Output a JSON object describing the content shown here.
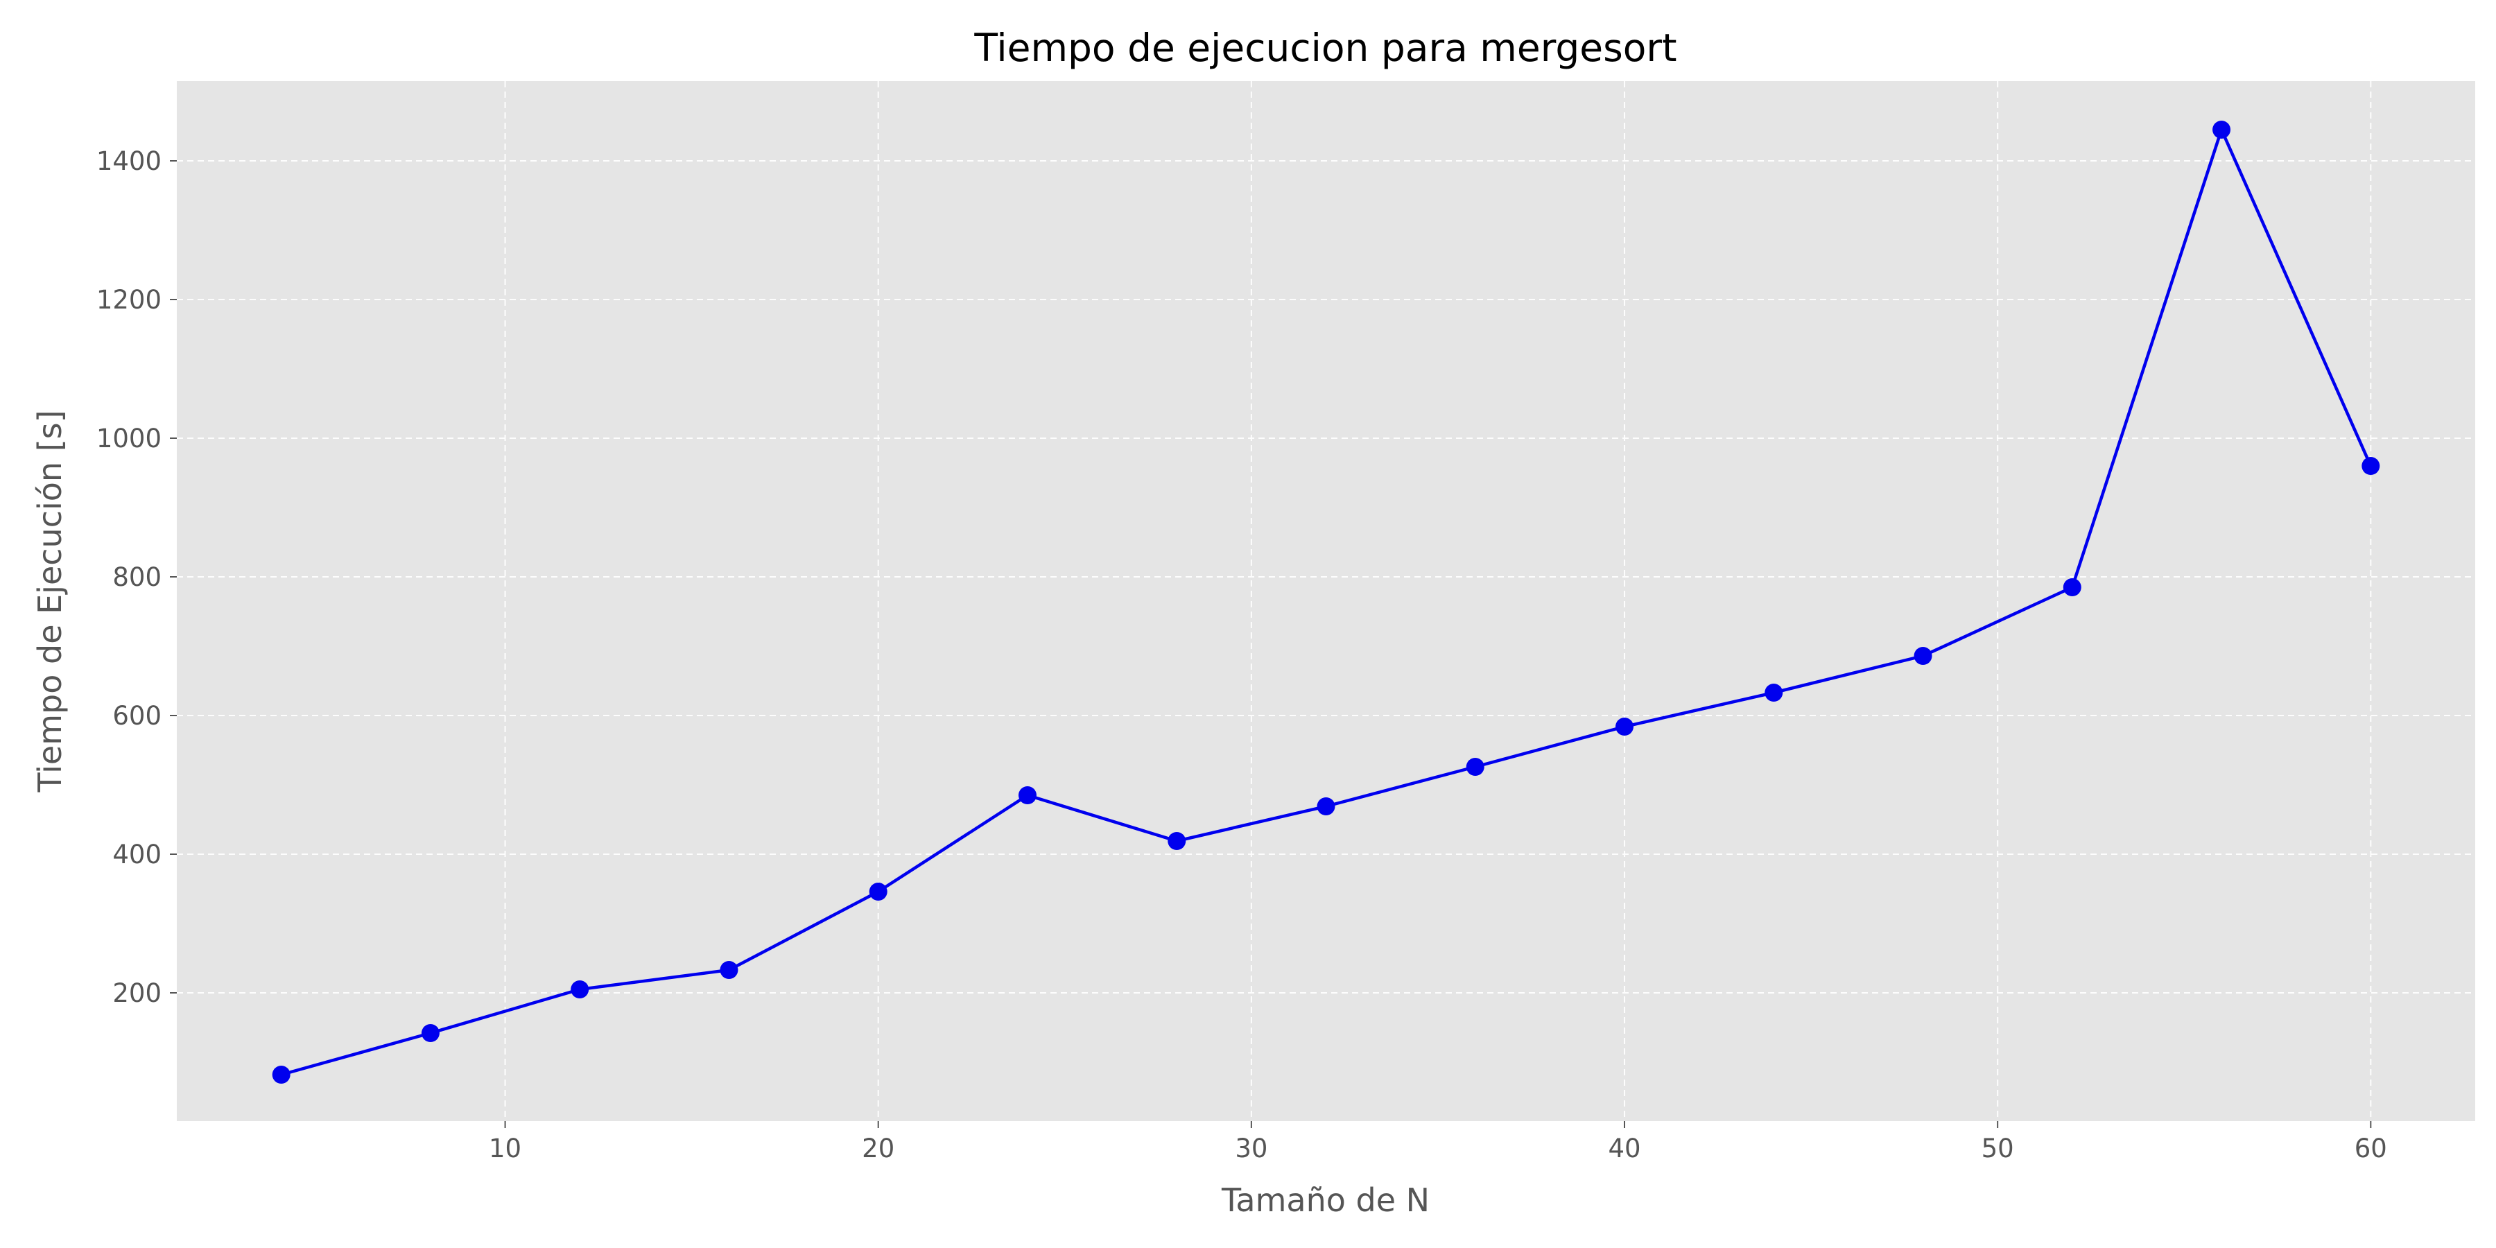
{
  "chart_data": {
    "type": "line",
    "title": "Tiempo de ejecucion para mergesort",
    "xlabel": "Tamaño de N",
    "ylabel": "Tiempo de Ejecución [s]",
    "xlim": [
      1.2,
      62.8
    ],
    "ylim": [
      15,
      1515
    ],
    "x_ticks": [
      10,
      20,
      30,
      40,
      50,
      60
    ],
    "y_ticks": [
      200,
      400,
      600,
      800,
      1000,
      1200,
      1400
    ],
    "grid": true,
    "colors": {
      "series": "#0000ee",
      "plot_background": "#e5e5e5"
    },
    "series": [
      {
        "x": [
          4,
          8,
          12,
          16,
          20,
          24,
          28,
          32,
          36,
          40,
          44,
          48,
          52,
          56,
          60
        ],
        "values": [
          82,
          142,
          205,
          233,
          346,
          485,
          419,
          469,
          526,
          584,
          633,
          686,
          785,
          1445,
          960
        ]
      }
    ]
  }
}
